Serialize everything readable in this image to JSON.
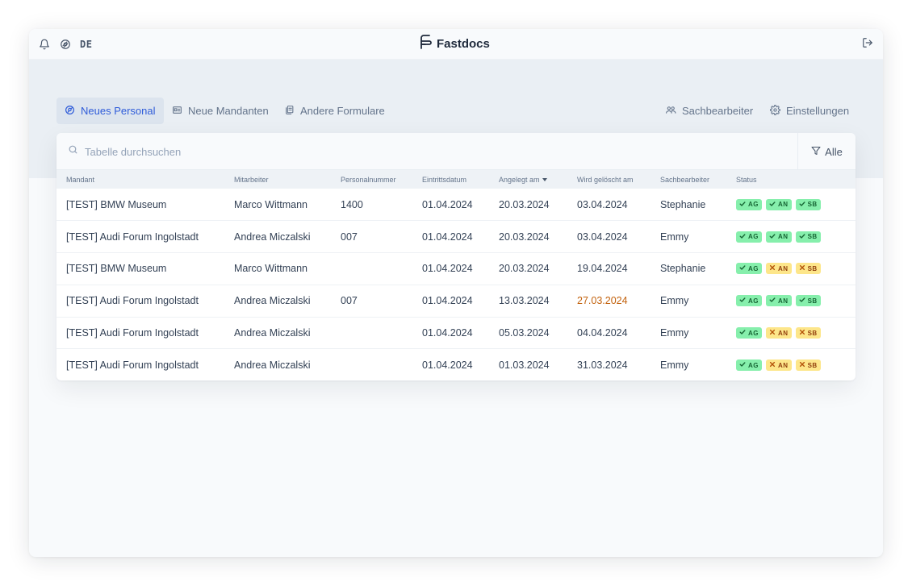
{
  "topbar": {
    "lang": "DE",
    "brand": "Fastdocs",
    "icons": {
      "notifications": "bell-icon",
      "theme": "palette-icon",
      "logout": "logout-icon"
    }
  },
  "tabs": [
    {
      "label": "Neues Personal",
      "icon": "user-circle-icon",
      "active": true
    },
    {
      "label": "Neue Mandanten",
      "icon": "id-card-icon",
      "active": false
    },
    {
      "label": "Andere Formulare",
      "icon": "documents-icon",
      "active": false
    }
  ],
  "nav_right": [
    {
      "label": "Sachbearbeiter",
      "icon": "users-icon"
    },
    {
      "label": "Einstellungen",
      "icon": "gear-icon"
    }
  ],
  "search": {
    "placeholder": "Tabelle durchsuchen"
  },
  "filter": {
    "label": "Alle"
  },
  "table": {
    "columns": [
      "Mandant",
      "Mitarbeiter",
      "Personalnummer",
      "Eintrittsdatum",
      "Angelegt am",
      "Wird gelöscht am",
      "Sachbearbeiter",
      "Status"
    ],
    "sorted_column": "Angelegt am",
    "rows": [
      {
        "mandant": "[TEST] BMW Museum",
        "mitarbeiter": "Marco Wittmann",
        "personalnummer": "1400",
        "eintritt": "01.04.2024",
        "angelegt": "20.03.2024",
        "geloescht": "03.04.2024",
        "geloescht_warning": false,
        "sachbearbeiter": "Stephanie",
        "status": [
          {
            "code": "AG",
            "ok": true
          },
          {
            "code": "AN",
            "ok": true
          },
          {
            "code": "SB",
            "ok": true
          }
        ]
      },
      {
        "mandant": "[TEST] Audi Forum Ingolstadt",
        "mitarbeiter": "Andrea Miczalski",
        "personalnummer": "007",
        "eintritt": "01.04.2024",
        "angelegt": "20.03.2024",
        "geloescht": "03.04.2024",
        "geloescht_warning": false,
        "sachbearbeiter": "Emmy",
        "status": [
          {
            "code": "AG",
            "ok": true
          },
          {
            "code": "AN",
            "ok": true
          },
          {
            "code": "SB",
            "ok": true
          }
        ]
      },
      {
        "mandant": "[TEST] BMW Museum",
        "mitarbeiter": "Marco Wittmann",
        "personalnummer": "",
        "eintritt": "01.04.2024",
        "angelegt": "20.03.2024",
        "geloescht": "19.04.2024",
        "geloescht_warning": false,
        "sachbearbeiter": "Stephanie",
        "status": [
          {
            "code": "AG",
            "ok": true
          },
          {
            "code": "AN",
            "ok": false
          },
          {
            "code": "SB",
            "ok": false
          }
        ]
      },
      {
        "mandant": "[TEST] Audi Forum Ingolstadt",
        "mitarbeiter": "Andrea Miczalski",
        "personalnummer": "007",
        "eintritt": "01.04.2024",
        "angelegt": "13.03.2024",
        "geloescht": "27.03.2024",
        "geloescht_warning": true,
        "sachbearbeiter": "Emmy",
        "status": [
          {
            "code": "AG",
            "ok": true
          },
          {
            "code": "AN",
            "ok": true
          },
          {
            "code": "SB",
            "ok": true
          }
        ]
      },
      {
        "mandant": "[TEST] Audi Forum Ingolstadt",
        "mitarbeiter": "Andrea Miczalski",
        "personalnummer": "",
        "eintritt": "01.04.2024",
        "angelegt": "05.03.2024",
        "geloescht": "04.04.2024",
        "geloescht_warning": false,
        "sachbearbeiter": "Emmy",
        "status": [
          {
            "code": "AG",
            "ok": true
          },
          {
            "code": "AN",
            "ok": false
          },
          {
            "code": "SB",
            "ok": false
          }
        ]
      },
      {
        "mandant": "[TEST] Audi Forum Ingolstadt",
        "mitarbeiter": "Andrea Miczalski",
        "personalnummer": "",
        "eintritt": "01.04.2024",
        "angelegt": "01.03.2024",
        "geloescht": "31.03.2024",
        "geloescht_warning": false,
        "sachbearbeiter": "Emmy",
        "status": [
          {
            "code": "AG",
            "ok": true
          },
          {
            "code": "AN",
            "ok": false
          },
          {
            "code": "SB",
            "ok": false
          }
        ]
      }
    ]
  },
  "colors": {
    "accent": "#2f5cd9",
    "badge_ok_bg": "#86efac",
    "badge_pending_bg": "#fde68a",
    "warning_text": "#c2610c"
  }
}
